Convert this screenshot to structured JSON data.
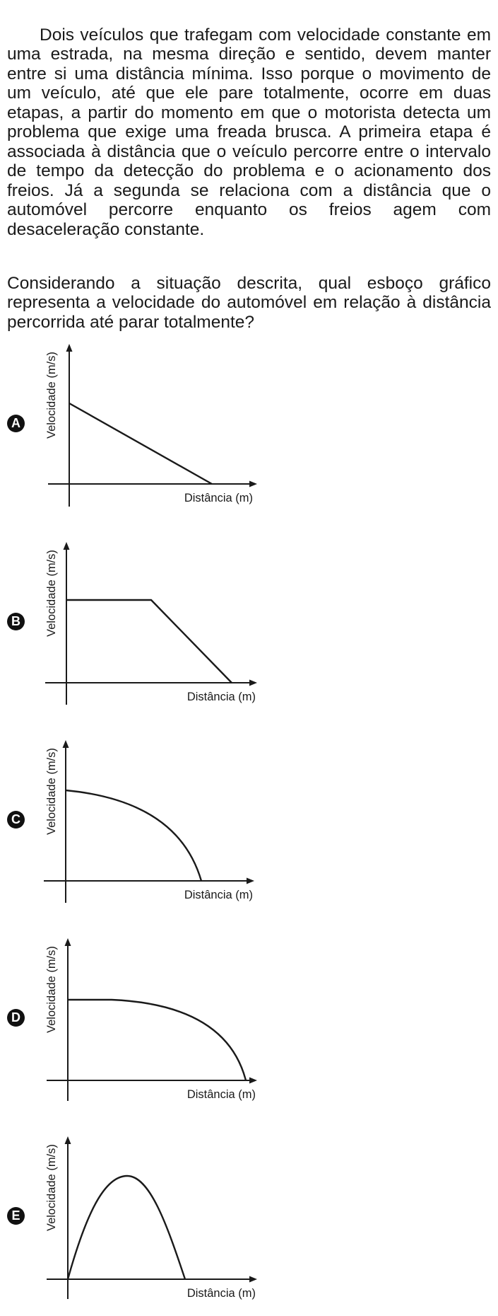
{
  "question": {
    "paragraph1": "Dois veículos que trafegam com velocidade constante em uma estrada, na mesma direção e sentido, devem manter entre si uma distância mínima. Isso porque o movimento de um veículo, até que ele pare totalmente, ocorre em duas etapas, a partir do momento em que o motorista detecta um problema que exige uma freada brusca. A primeira etapa é associada à distância que o veículo percorre entre o intervalo de tempo da detecção do problema e o acionamento dos freios. Já a segunda se relaciona com a distância que o automóvel percorre enquanto os freios agem com desaceleração constante.",
    "paragraph2": "Considerando a situação descrita, qual esboço gráfico representa a velocidade do automóvel em relação à distância percorrida até parar totalmente?"
  },
  "options": [
    {
      "letter": "A",
      "ylabel": "Velocidade (m/s)",
      "xlabel": "Distância (m)",
      "curve": "linear decrease from the vertical axis to zero"
    },
    {
      "letter": "B",
      "ylabel": "Velocidade (m/s)",
      "xlabel": "Distância (m)",
      "curve": "constant then linear decrease to zero"
    },
    {
      "letter": "C",
      "ylabel": "Velocidade (m/s)",
      "xlabel": "Distância (m)",
      "curve": "concave-down curve decreasing to zero"
    },
    {
      "letter": "D",
      "ylabel": "Velocidade (m/s)",
      "xlabel": "Distância (m)",
      "curve": "constant then concave-down curve decreasing to zero"
    },
    {
      "letter": "E",
      "ylabel": "Velocidade (m/s)",
      "xlabel": "Distância (m)",
      "curve": "rises from zero to a peak then falls to zero"
    }
  ]
}
